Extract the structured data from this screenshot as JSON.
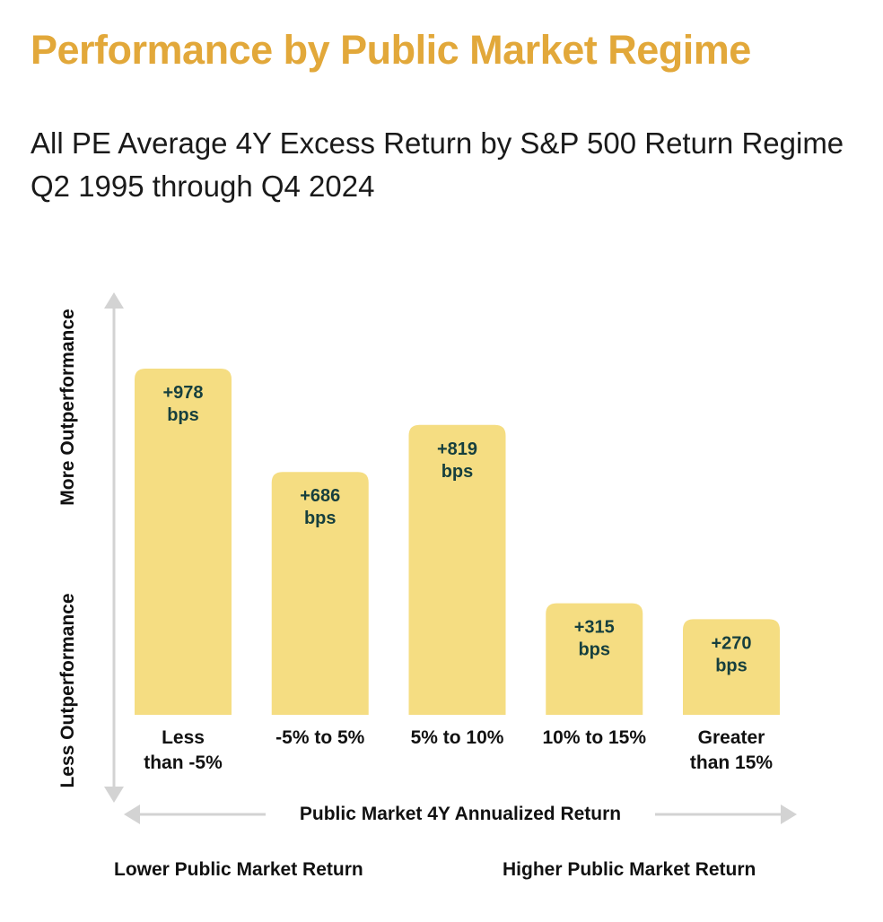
{
  "header": {
    "title": "Performance by Public Market Regime",
    "subtitle": "All PE Average 4Y Excess Return by S&P 500 Return Regime Q2 1995 through Q4 2024"
  },
  "chart_data": {
    "type": "bar",
    "categories": [
      [
        "Less",
        "than -5%"
      ],
      [
        "-5% to 5%"
      ],
      [
        "5% to 10%"
      ],
      [
        "10% to 15%"
      ],
      [
        "Greater",
        "than 15%"
      ]
    ],
    "values": [
      978,
      686,
      819,
      315,
      270
    ],
    "data_labels": [
      [
        "+978",
        "bps"
      ],
      [
        "+686",
        "bps"
      ],
      [
        "+819",
        "bps"
      ],
      [
        "+315",
        "bps"
      ],
      [
        "+270",
        "bps"
      ]
    ],
    "xlabel": "Public Market 4Y Annualized Return",
    "y_axis_labels": {
      "top": "More Outperformance",
      "bottom": "Less Outperformance"
    },
    "x_axis_ends": {
      "left": "Lower Public Market Return",
      "right": "Higher Public Market Return"
    },
    "ylim": [
      0,
      1000
    ],
    "grid": false,
    "colors": {
      "bar": "#f5dd82",
      "bar_label": "#163f3e",
      "title": "#e2a83a",
      "axis_arrow": "#d3d3d3"
    }
  }
}
